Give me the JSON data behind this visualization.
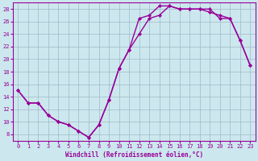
{
  "xlabel": "Windchill (Refroidissement éolien,°C)",
  "ylabel": "",
  "background_color": "#cce8ee",
  "line_color": "#990099",
  "xlim": [
    -0.5,
    23.5
  ],
  "ylim": [
    7,
    29
  ],
  "yticks": [
    8,
    10,
    12,
    14,
    16,
    18,
    20,
    22,
    24,
    26,
    28
  ],
  "xticks": [
    0,
    1,
    2,
    3,
    4,
    5,
    6,
    7,
    8,
    9,
    10,
    11,
    12,
    13,
    14,
    15,
    16,
    17,
    18,
    19,
    20,
    21,
    22,
    23
  ],
  "series1_x": [
    0,
    1,
    2,
    3,
    4,
    5,
    6,
    7,
    8,
    9,
    10,
    11,
    12,
    13,
    14,
    15,
    16,
    17,
    18,
    19,
    20,
    21,
    22,
    23
  ],
  "series1_y": [
    15.0,
    13.0,
    13.0,
    11.0,
    10.0,
    9.5,
    8.5,
    7.5,
    9.5,
    13.5,
    18.5,
    21.5,
    24.0,
    26.5,
    27.0,
    28.5,
    28.0,
    28.0,
    28.0,
    27.5,
    27.0,
    26.5,
    23.0,
    19.0
  ],
  "series2_x": [
    0,
    1,
    2,
    3,
    4,
    5,
    6,
    7,
    8,
    9,
    10,
    11,
    12,
    13,
    14,
    15,
    16,
    17,
    18,
    19,
    20,
    21,
    22,
    23
  ],
  "series2_y": [
    15.0,
    13.0,
    13.0,
    11.0,
    10.0,
    9.5,
    8.5,
    7.5,
    9.5,
    13.5,
    18.5,
    21.5,
    26.5,
    27.0,
    28.5,
    28.5,
    28.0,
    28.0,
    28.0,
    28.0,
    26.5,
    26.5,
    23.0,
    19.0
  ],
  "grid_color": "#a0b8c8",
  "marker": "D",
  "markersize": 2.2,
  "linewidth": 1.0
}
